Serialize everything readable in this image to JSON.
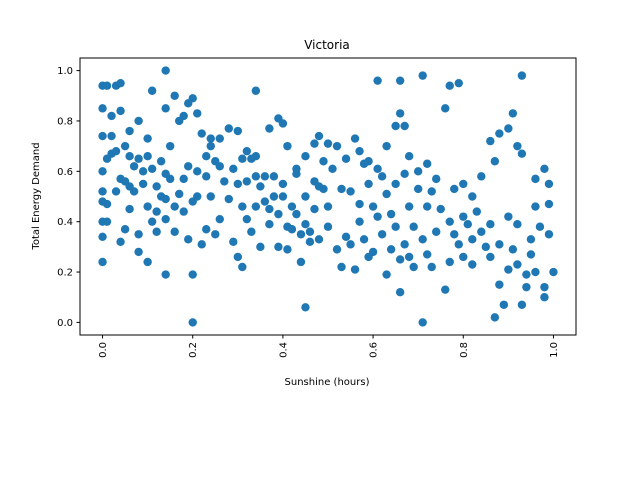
{
  "chart_data": {
    "type": "scatter",
    "title": "Victoria",
    "xlabel": "Sunshine (hours)",
    "ylabel": "Total Energy Demand",
    "xlim": [
      -0.05,
      1.05
    ],
    "ylim": [
      -0.05,
      1.05
    ],
    "xticks": [
      "0.0",
      "0.2",
      "0.4",
      "0.6",
      "0.8",
      "1.0"
    ],
    "yticks": [
      "0.0",
      "0.2",
      "0.4",
      "0.6",
      "0.8",
      "1.0"
    ],
    "xtick_rotation": 90,
    "grid": false,
    "legend": "none",
    "marker_color": "#1f77b4",
    "points": [
      [
        0.0,
        0.94
      ],
      [
        0.01,
        0.94
      ],
      [
        0.03,
        0.94
      ],
      [
        0.04,
        0.95
      ],
      [
        0.0,
        0.85
      ],
      [
        0.02,
        0.82
      ],
      [
        0.04,
        0.84
      ],
      [
        0.0,
        0.74
      ],
      [
        0.02,
        0.74
      ],
      [
        0.05,
        0.7
      ],
      [
        0.06,
        0.76
      ],
      [
        0.08,
        0.8
      ],
      [
        0.1,
        0.73
      ],
      [
        0.11,
        0.92
      ],
      [
        0.14,
        1.0
      ],
      [
        0.14,
        0.85
      ],
      [
        0.16,
        0.9
      ],
      [
        0.18,
        0.82
      ],
      [
        0.19,
        0.87
      ],
      [
        0.2,
        0.89
      ],
      [
        0.21,
        0.83
      ],
      [
        0.22,
        0.75
      ],
      [
        0.24,
        0.7
      ],
      [
        0.26,
        0.73
      ],
      [
        0.28,
        0.77
      ],
      [
        0.3,
        0.76
      ],
      [
        0.32,
        0.68
      ],
      [
        0.34,
        0.92
      ],
      [
        0.34,
        0.66
      ],
      [
        0.37,
        0.77
      ],
      [
        0.39,
        0.81
      ],
      [
        0.4,
        0.79
      ],
      [
        0.41,
        0.7
      ],
      [
        0.43,
        0.61
      ],
      [
        0.45,
        0.66
      ],
      [
        0.47,
        0.71
      ],
      [
        0.48,
        0.74
      ],
      [
        0.5,
        0.71
      ],
      [
        0.52,
        0.7
      ],
      [
        0.54,
        0.65
      ],
      [
        0.56,
        0.73
      ],
      [
        0.57,
        0.68
      ],
      [
        0.59,
        0.64
      ],
      [
        0.61,
        0.96
      ],
      [
        0.63,
        0.7
      ],
      [
        0.65,
        0.78
      ],
      [
        0.66,
        0.96
      ],
      [
        0.66,
        0.83
      ],
      [
        0.67,
        0.78
      ],
      [
        0.68,
        0.66
      ],
      [
        0.7,
        0.6
      ],
      [
        0.71,
        0.98
      ],
      [
        0.72,
        0.63
      ],
      [
        0.74,
        0.57
      ],
      [
        0.76,
        0.85
      ],
      [
        0.77,
        0.94
      ],
      [
        0.79,
        0.95
      ],
      [
        0.8,
        0.55
      ],
      [
        0.82,
        0.5
      ],
      [
        0.84,
        0.58
      ],
      [
        0.86,
        0.72
      ],
      [
        0.87,
        0.64
      ],
      [
        0.88,
        0.75
      ],
      [
        0.9,
        0.77
      ],
      [
        0.91,
        0.83
      ],
      [
        0.92,
        0.7
      ],
      [
        0.93,
        0.98
      ],
      [
        0.93,
        0.67
      ],
      [
        0.96,
        0.57
      ],
      [
        0.98,
        0.61
      ],
      [
        0.99,
        0.55
      ],
      [
        0.99,
        0.47
      ],
      [
        0.0,
        0.6
      ],
      [
        0.0,
        0.52
      ],
      [
        0.0,
        0.48
      ],
      [
        0.01,
        0.47
      ],
      [
        0.01,
        0.4
      ],
      [
        0.0,
        0.4
      ],
      [
        0.0,
        0.34
      ],
      [
        0.0,
        0.24
      ],
      [
        0.01,
        0.65
      ],
      [
        0.02,
        0.67
      ],
      [
        0.03,
        0.68
      ],
      [
        0.03,
        0.52
      ],
      [
        0.04,
        0.57
      ],
      [
        0.04,
        0.32
      ],
      [
        0.05,
        0.56
      ],
      [
        0.05,
        0.37
      ],
      [
        0.06,
        0.66
      ],
      [
        0.06,
        0.54
      ],
      [
        0.06,
        0.45
      ],
      [
        0.07,
        0.62
      ],
      [
        0.07,
        0.52
      ],
      [
        0.08,
        0.65
      ],
      [
        0.08,
        0.35
      ],
      [
        0.08,
        0.28
      ],
      [
        0.09,
        0.6
      ],
      [
        0.09,
        0.55
      ],
      [
        0.1,
        0.66
      ],
      [
        0.1,
        0.46
      ],
      [
        0.1,
        0.24
      ],
      [
        0.11,
        0.61
      ],
      [
        0.11,
        0.4
      ],
      [
        0.12,
        0.54
      ],
      [
        0.12,
        0.44
      ],
      [
        0.12,
        0.36
      ],
      [
        0.13,
        0.64
      ],
      [
        0.13,
        0.5
      ],
      [
        0.14,
        0.59
      ],
      [
        0.14,
        0.49
      ],
      [
        0.14,
        0.41
      ],
      [
        0.14,
        0.19
      ],
      [
        0.15,
        0.7
      ],
      [
        0.15,
        0.57
      ],
      [
        0.16,
        0.46
      ],
      [
        0.16,
        0.36
      ],
      [
        0.17,
        0.8
      ],
      [
        0.17,
        0.51
      ],
      [
        0.18,
        0.57
      ],
      [
        0.18,
        0.44
      ],
      [
        0.19,
        0.62
      ],
      [
        0.19,
        0.33
      ],
      [
        0.2,
        0.48
      ],
      [
        0.2,
        0.19
      ],
      [
        0.2,
        0.0
      ],
      [
        0.21,
        0.6
      ],
      [
        0.21,
        0.5
      ],
      [
        0.22,
        0.31
      ],
      [
        0.23,
        0.66
      ],
      [
        0.23,
        0.58
      ],
      [
        0.23,
        0.37
      ],
      [
        0.24,
        0.73
      ],
      [
        0.24,
        0.5
      ],
      [
        0.25,
        0.64
      ],
      [
        0.25,
        0.35
      ],
      [
        0.26,
        0.62
      ],
      [
        0.26,
        0.41
      ],
      [
        0.27,
        0.56
      ],
      [
        0.28,
        0.49
      ],
      [
        0.29,
        0.61
      ],
      [
        0.29,
        0.32
      ],
      [
        0.3,
        0.55
      ],
      [
        0.3,
        0.26
      ],
      [
        0.31,
        0.65
      ],
      [
        0.31,
        0.46
      ],
      [
        0.31,
        0.22
      ],
      [
        0.32,
        0.56
      ],
      [
        0.32,
        0.41
      ],
      [
        0.33,
        0.65
      ],
      [
        0.33,
        0.36
      ],
      [
        0.34,
        0.58
      ],
      [
        0.34,
        0.46
      ],
      [
        0.35,
        0.54
      ],
      [
        0.35,
        0.3
      ],
      [
        0.36,
        0.58
      ],
      [
        0.36,
        0.48
      ],
      [
        0.37,
        0.45
      ],
      [
        0.37,
        0.39
      ],
      [
        0.38,
        0.58
      ],
      [
        0.38,
        0.5
      ],
      [
        0.39,
        0.43
      ],
      [
        0.39,
        0.3
      ],
      [
        0.4,
        0.55
      ],
      [
        0.4,
        0.5
      ],
      [
        0.41,
        0.38
      ],
      [
        0.41,
        0.29
      ],
      [
        0.42,
        0.46
      ],
      [
        0.42,
        0.37
      ],
      [
        0.43,
        0.59
      ],
      [
        0.43,
        0.43
      ],
      [
        0.44,
        0.35
      ],
      [
        0.44,
        0.24
      ],
      [
        0.45,
        0.5
      ],
      [
        0.45,
        0.39
      ],
      [
        0.45,
        0.06
      ],
      [
        0.46,
        0.36
      ],
      [
        0.46,
        0.32
      ],
      [
        0.47,
        0.56
      ],
      [
        0.47,
        0.45
      ],
      [
        0.48,
        0.54
      ],
      [
        0.48,
        0.33
      ],
      [
        0.49,
        0.64
      ],
      [
        0.49,
        0.53
      ],
      [
        0.5,
        0.46
      ],
      [
        0.5,
        0.38
      ],
      [
        0.51,
        0.61
      ],
      [
        0.52,
        0.29
      ],
      [
        0.53,
        0.53
      ],
      [
        0.53,
        0.22
      ],
      [
        0.54,
        0.34
      ],
      [
        0.55,
        0.52
      ],
      [
        0.55,
        0.31
      ],
      [
        0.56,
        0.21
      ],
      [
        0.57,
        0.47
      ],
      [
        0.57,
        0.4
      ],
      [
        0.58,
        0.63
      ],
      [
        0.58,
        0.33
      ],
      [
        0.59,
        0.55
      ],
      [
        0.59,
        0.26
      ],
      [
        0.6,
        0.46
      ],
      [
        0.6,
        0.28
      ],
      [
        0.61,
        0.61
      ],
      [
        0.61,
        0.42
      ],
      [
        0.62,
        0.58
      ],
      [
        0.62,
        0.35
      ],
      [
        0.63,
        0.51
      ],
      [
        0.63,
        0.19
      ],
      [
        0.64,
        0.43
      ],
      [
        0.64,
        0.29
      ],
      [
        0.65,
        0.55
      ],
      [
        0.65,
        0.38
      ],
      [
        0.66,
        0.25
      ],
      [
        0.66,
        0.12
      ],
      [
        0.67,
        0.59
      ],
      [
        0.67,
        0.31
      ],
      [
        0.68,
        0.46
      ],
      [
        0.68,
        0.26
      ],
      [
        0.69,
        0.38
      ],
      [
        0.69,
        0.22
      ],
      [
        0.7,
        0.53
      ],
      [
        0.71,
        0.33
      ],
      [
        0.71,
        0.0
      ],
      [
        0.72,
        0.46
      ],
      [
        0.72,
        0.27
      ],
      [
        0.73,
        0.52
      ],
      [
        0.73,
        0.22
      ],
      [
        0.74,
        0.36
      ],
      [
        0.75,
        0.45
      ],
      [
        0.76,
        0.13
      ],
      [
        0.77,
        0.4
      ],
      [
        0.77,
        0.24
      ],
      [
        0.78,
        0.53
      ],
      [
        0.78,
        0.35
      ],
      [
        0.79,
        0.31
      ],
      [
        0.8,
        0.42
      ],
      [
        0.8,
        0.26
      ],
      [
        0.81,
        0.39
      ],
      [
        0.82,
        0.33
      ],
      [
        0.82,
        0.23
      ],
      [
        0.83,
        0.44
      ],
      [
        0.84,
        0.36
      ],
      [
        0.85,
        0.3
      ],
      [
        0.86,
        0.39
      ],
      [
        0.86,
        0.26
      ],
      [
        0.87,
        0.02
      ],
      [
        0.88,
        0.15
      ],
      [
        0.88,
        0.31
      ],
      [
        0.89,
        0.07
      ],
      [
        0.9,
        0.42
      ],
      [
        0.9,
        0.21
      ],
      [
        0.91,
        0.29
      ],
      [
        0.92,
        0.39
      ],
      [
        0.92,
        0.23
      ],
      [
        0.93,
        0.07
      ],
      [
        0.94,
        0.19
      ],
      [
        0.94,
        0.14
      ],
      [
        0.95,
        0.33
      ],
      [
        0.95,
        0.27
      ],
      [
        0.96,
        0.46
      ],
      [
        0.96,
        0.2
      ],
      [
        0.97,
        0.38
      ],
      [
        0.98,
        0.14
      ],
      [
        0.98,
        0.1
      ],
      [
        0.99,
        0.35
      ],
      [
        1.0,
        0.2
      ]
    ]
  }
}
